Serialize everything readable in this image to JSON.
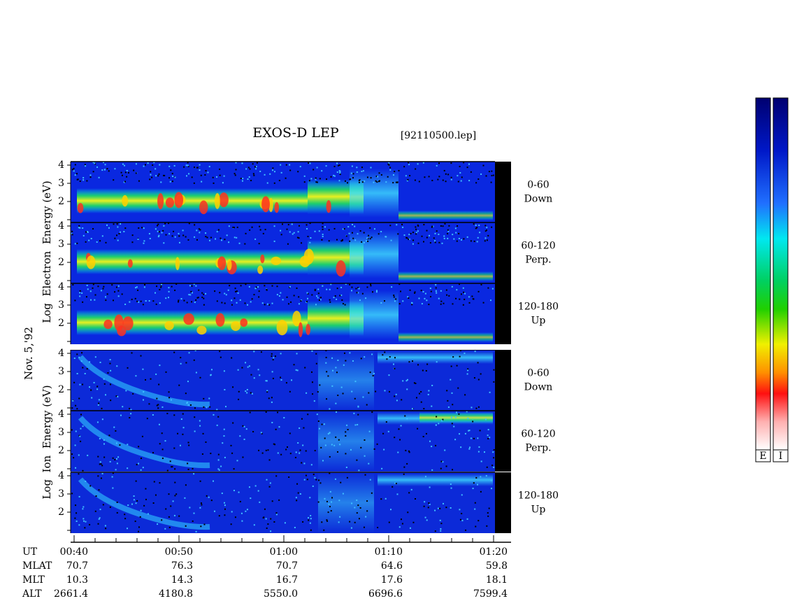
{
  "title": "EXOS-D LEP",
  "file": "[92110500.lep]",
  "electron_axis_label": "Log  Electron  Energy (eV)",
  "ion_axis_label": "Log  Ion  Energy (eV)",
  "date": "Nov. 5,'92",
  "energy_ticks": [
    2,
    3,
    4
  ],
  "panels": [
    {
      "angle": "0-60",
      "direction": "Down"
    },
    {
      "angle": "60-120",
      "direction": "Perp."
    },
    {
      "angle": "120-180",
      "direction": "Up"
    },
    {
      "angle": "0-60",
      "direction": "Down"
    },
    {
      "angle": "60-120",
      "direction": "Perp."
    },
    {
      "angle": "120-180",
      "direction": "Up"
    }
  ],
  "time_axis": {
    "rows": [
      {
        "label": "UT",
        "values": [
          "00:40",
          "00:50",
          "01:00",
          "01:10",
          "01:20"
        ]
      },
      {
        "label": "MLAT",
        "values": [
          "70.7",
          "76.3",
          "70.7",
          "64.6",
          "59.8"
        ]
      },
      {
        "label": "MLT",
        "values": [
          "10.3",
          "14.3",
          "16.7",
          "17.6",
          "18.1"
        ]
      },
      {
        "label": "ALT",
        "values": [
          "2661.4",
          "4180.8",
          "5550.0",
          "6696.6",
          "7599.4"
        ]
      }
    ]
  },
  "colorbars": [
    "E",
    "I"
  ]
}
